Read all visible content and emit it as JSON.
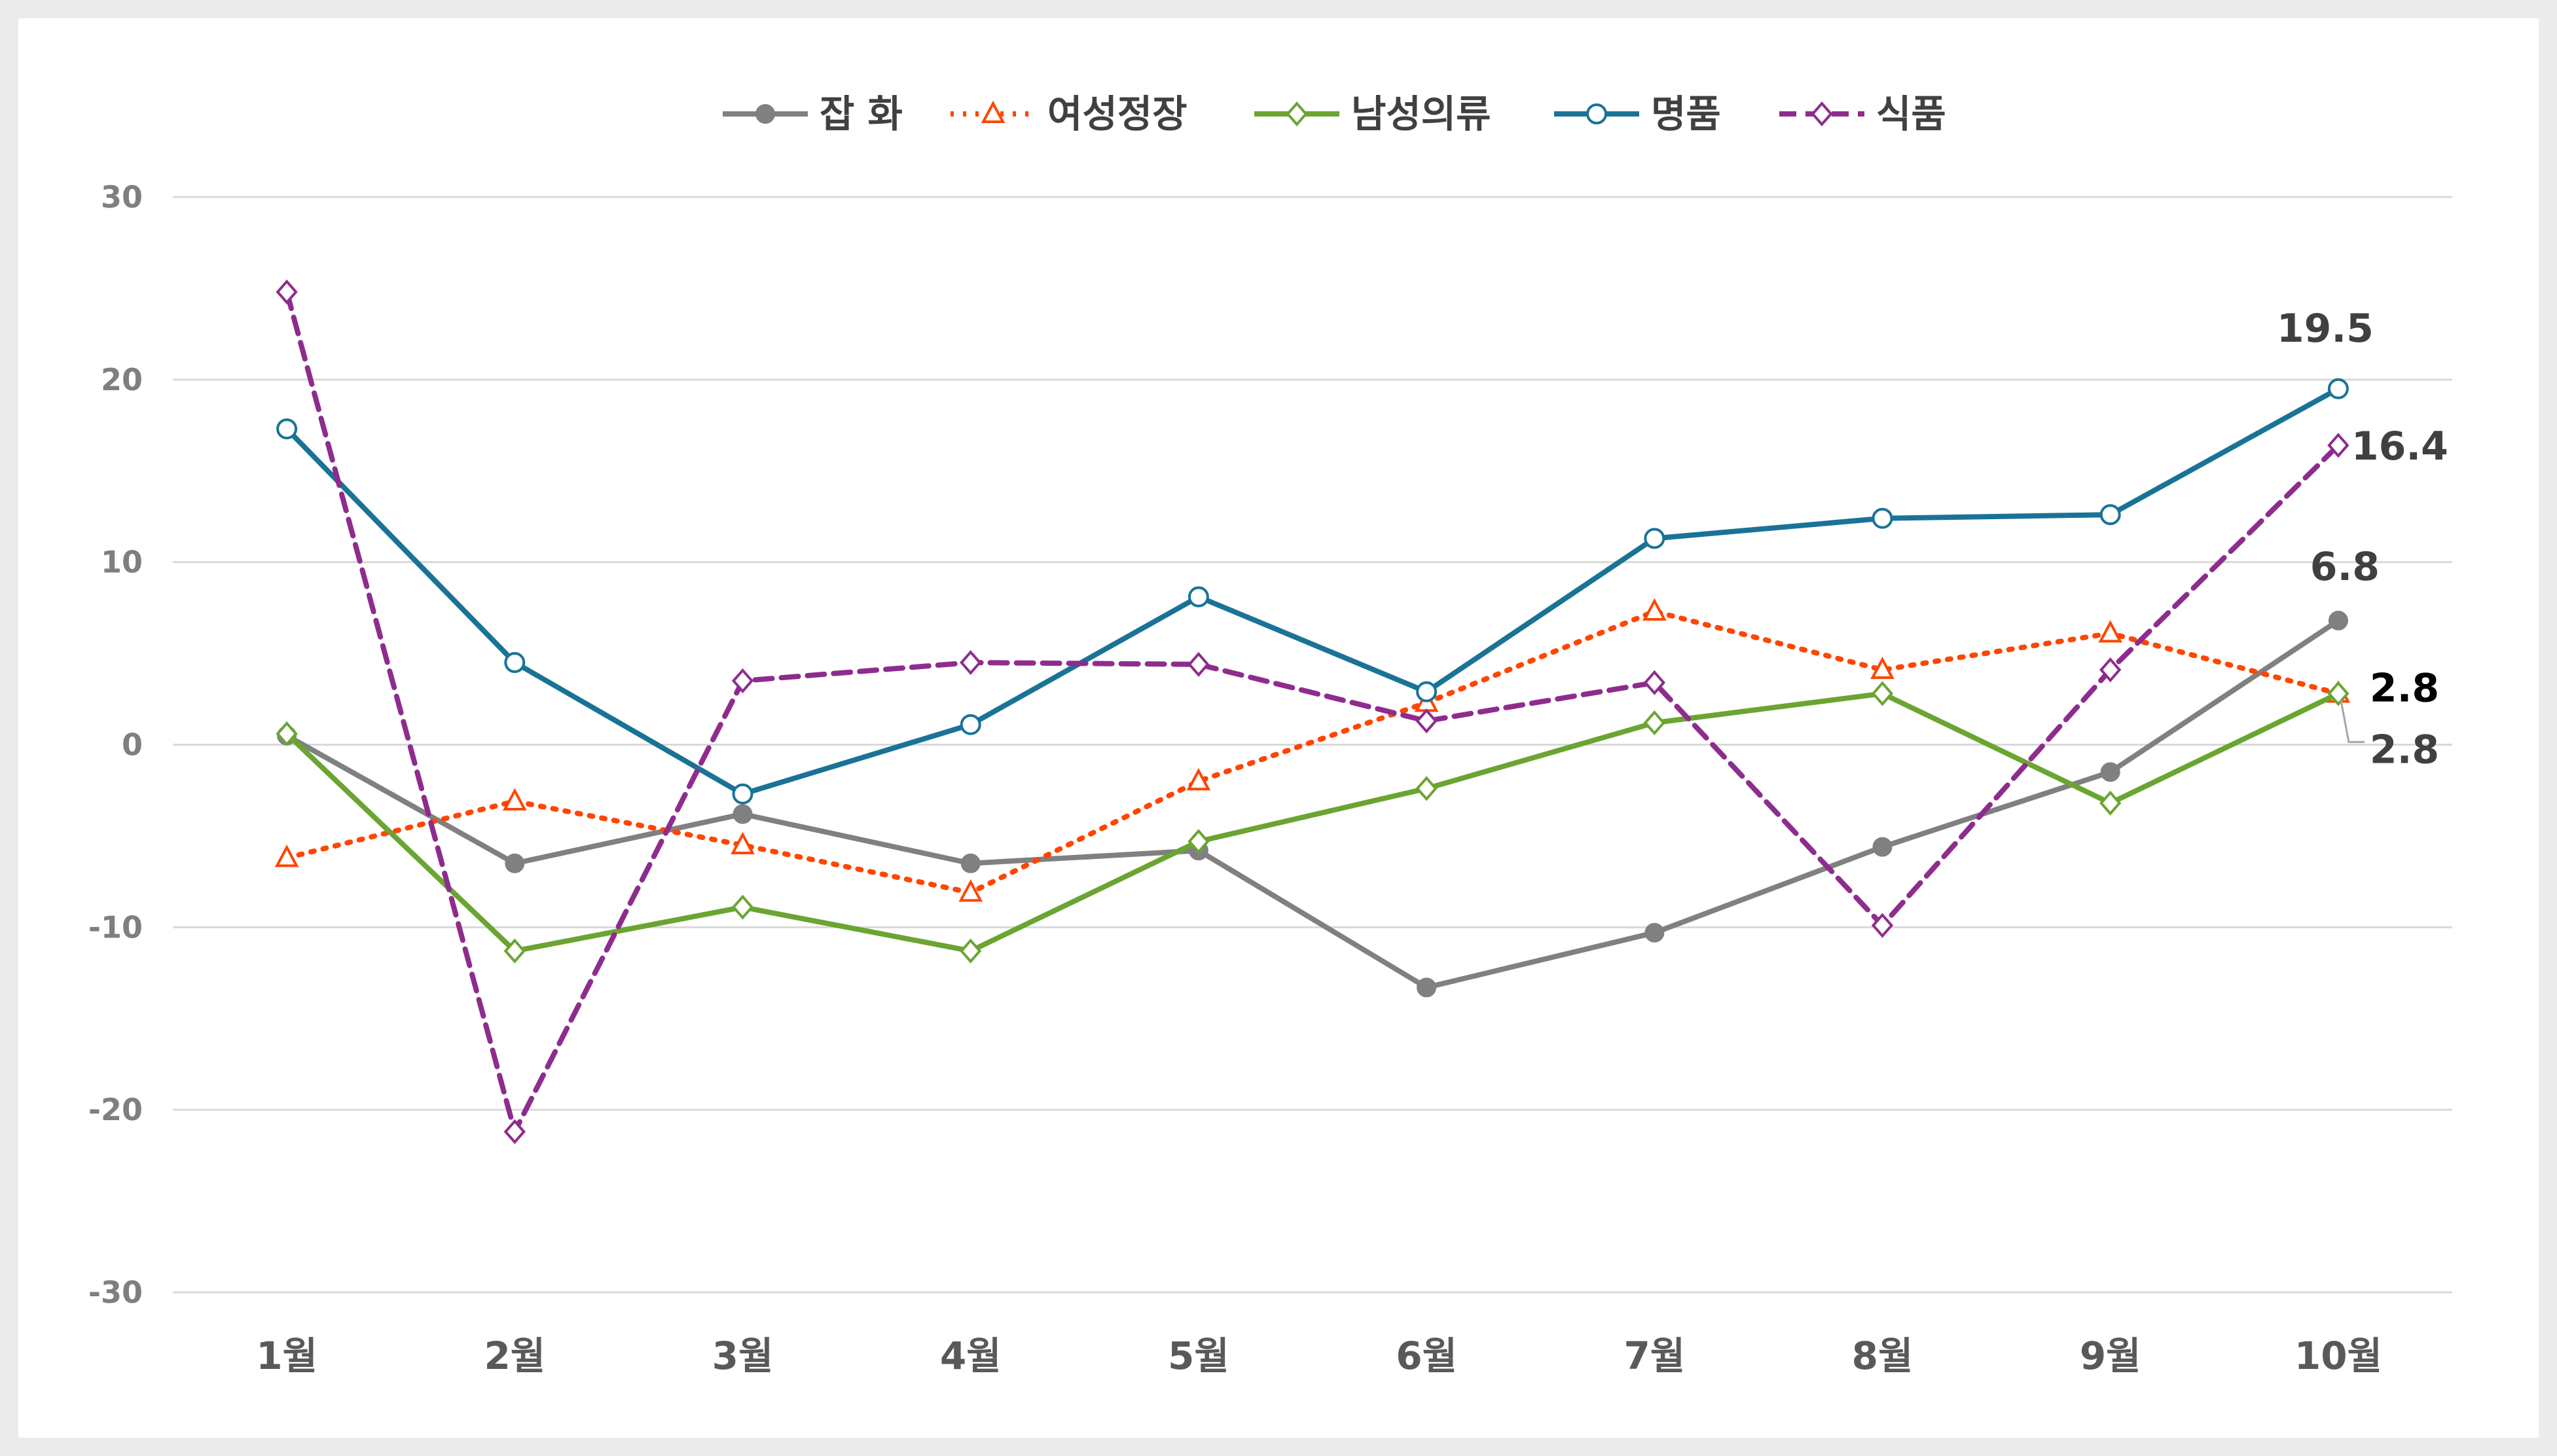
{
  "chart_data": {
    "type": "line",
    "title": "",
    "xlabel": "",
    "ylabel": "",
    "ylim": [
      -30,
      30
    ],
    "yticks": [
      30,
      20,
      10,
      0,
      -10,
      -20,
      -30
    ],
    "grid": true,
    "legend_position": "top",
    "categories": [
      "1월",
      "2월",
      "3월",
      "4월",
      "5월",
      "6월",
      "7월",
      "8월",
      "9월",
      "10월"
    ],
    "series": [
      {
        "name": "잡 화",
        "color": "#808080",
        "line_style": "solid",
        "marker": "filled-circle",
        "values": [
          0.5,
          -6.5,
          -3.8,
          -6.5,
          -5.8,
          -13.3,
          -10.3,
          -5.6,
          -1.5,
          6.8
        ]
      },
      {
        "name": "여성정장",
        "color": "#ff4500",
        "line_style": "dotted",
        "marker": "open-triangle",
        "values": [
          -6.2,
          -3.1,
          -5.5,
          -8.1,
          -2.0,
          2.3,
          7.3,
          4.1,
          6.1,
          2.8
        ]
      },
      {
        "name": "남성의류",
        "color": "#6aa532",
        "line_style": "solid",
        "marker": "open-diamond",
        "values": [
          0.6,
          -11.3,
          -8.9,
          -11.3,
          -5.3,
          -2.4,
          1.2,
          2.8,
          -3.2,
          2.8
        ]
      },
      {
        "name": "명품",
        "color": "#1a7397",
        "line_style": "solid",
        "marker": "open-circle",
        "values": [
          17.3,
          4.5,
          -2.7,
          1.1,
          8.1,
          2.9,
          11.3,
          12.4,
          12.6,
          19.5
        ]
      },
      {
        "name": "식품",
        "color": "#8e2c8e",
        "line_style": "dashed",
        "marker": "open-diamond",
        "values": [
          24.8,
          -21.2,
          3.5,
          4.5,
          4.4,
          1.3,
          3.4,
          -9.9,
          4.1,
          16.4
        ]
      }
    ],
    "data_labels": [
      {
        "series": "명품",
        "category": "10월",
        "text": "19.5",
        "color": "#404040"
      },
      {
        "series": "식품",
        "category": "10월",
        "text": "16.4",
        "color": "#404040"
      },
      {
        "series": "잡 화",
        "category": "10월",
        "text": "6.8",
        "color": "#404040"
      },
      {
        "series": "여성정장",
        "category": "10월",
        "text": "2.8",
        "color": "#000000"
      },
      {
        "series": "남성의류",
        "category": "10월",
        "text": "2.8",
        "color": "#404040"
      }
    ]
  }
}
